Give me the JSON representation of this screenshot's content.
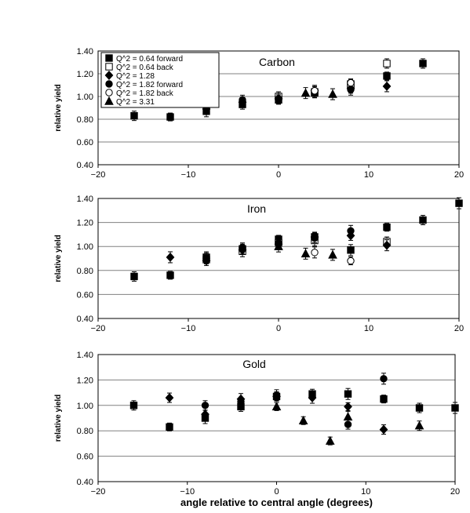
{
  "chart_data": [
    {
      "type": "scatter",
      "title": "Carbon",
      "xlabel": "",
      "ylabel": "relative yield",
      "xlim": [
        -20,
        20
      ],
      "ylim": [
        0.4,
        1.4
      ],
      "x_ticks": [
        "−20",
        "−10",
        "0",
        "10",
        "20"
      ],
      "y_ticks": [
        "0.40",
        "0.60",
        "0.80",
        "1.00",
        "1.20",
        "1.40"
      ],
      "grid": "horizontal",
      "legend": {
        "placement": "top-left",
        "entries": [
          {
            "label": "Q^2 = 0.64 forward",
            "marker": "filled-square"
          },
          {
            "label": "Q^2 = 0.64 back",
            "marker": "open-square"
          },
          {
            "label": "Q^2 = 1.28",
            "marker": "filled-diamond"
          },
          {
            "label": "Q^2 = 1.82 forward",
            "marker": "filled-circle"
          },
          {
            "label": "Q^2 = 1.82 back",
            "marker": "open-circle"
          },
          {
            "label": "Q^2 = 3.31",
            "marker": "filled-triangle"
          }
        ]
      },
      "series": [
        {
          "marker": "filled-square",
          "points": [
            [
              -16,
              0.83
            ],
            [
              -12,
              0.82
            ],
            [
              -8,
              0.87
            ],
            [
              -4,
              0.93
            ],
            [
              0,
              0.97
            ],
            [
              4,
              1.03
            ],
            [
              8,
              1.1
            ],
            [
              12,
              1.18
            ],
            [
              16,
              1.29
            ]
          ]
        },
        {
          "marker": "open-square",
          "points": [
            [
              0,
              1.0
            ],
            [
              4,
              1.04
            ],
            [
              8,
              1.11
            ],
            [
              12,
              1.29
            ]
          ]
        },
        {
          "marker": "filled-diamond",
          "points": [
            [
              -12,
              1.0
            ],
            [
              -8,
              0.89
            ],
            [
              -4,
              0.95
            ],
            [
              0,
              0.98
            ],
            [
              4,
              1.05
            ],
            [
              8,
              1.07
            ],
            [
              12,
              1.09
            ]
          ]
        },
        {
          "marker": "filled-circle",
          "points": [
            [
              -8,
              0.95
            ],
            [
              -4,
              0.97
            ],
            [
              0,
              0.98
            ],
            [
              4,
              1.03
            ],
            [
              8,
              1.06
            ]
          ]
        },
        {
          "marker": "open-circle",
          "points": [
            [
              4,
              1.05
            ],
            [
              8,
              1.12
            ]
          ]
        },
        {
          "marker": "filled-triangle",
          "points": [
            [
              3,
              1.03
            ],
            [
              6,
              1.02
            ]
          ]
        }
      ]
    },
    {
      "type": "scatter",
      "title": "Iron",
      "xlabel": "",
      "ylabel": "relative yield",
      "xlim": [
        -20,
        20
      ],
      "ylim": [
        0.4,
        1.4
      ],
      "x_ticks": [
        "−20",
        "−10",
        "0",
        "10",
        "20"
      ],
      "y_ticks": [
        "0.40",
        "0.60",
        "0.80",
        "1.00",
        "1.20",
        "1.40"
      ],
      "grid": "horizontal",
      "series": [
        {
          "marker": "filled-square",
          "points": [
            [
              -16,
              0.75
            ],
            [
              -12,
              0.76
            ],
            [
              -8,
              0.91
            ],
            [
              -4,
              0.98
            ],
            [
              0,
              1.06
            ],
            [
              4,
              1.08
            ],
            [
              8,
              0.97
            ],
            [
              12,
              1.16
            ],
            [
              16,
              1.22
            ],
            [
              20,
              1.36
            ]
          ]
        },
        {
          "marker": "open-square",
          "points": [
            [
              -8,
              0.89
            ],
            [
              -4,
              0.96
            ],
            [
              0,
              1.03
            ],
            [
              4,
              1.05
            ],
            [
              12,
              1.04
            ]
          ]
        },
        {
          "marker": "filled-diamond",
          "points": [
            [
              -12,
              0.91
            ],
            [
              -8,
              0.88
            ],
            [
              -4,
              0.97
            ],
            [
              0,
              1.02
            ],
            [
              4,
              1.08
            ],
            [
              8,
              1.09
            ],
            [
              12,
              1.01
            ]
          ]
        },
        {
          "marker": "filled-circle",
          "points": [
            [
              -8,
              0.9
            ],
            [
              -4,
              0.99
            ],
            [
              0,
              1.03
            ],
            [
              4,
              1.07
            ],
            [
              8,
              1.13
            ]
          ]
        },
        {
          "marker": "open-circle",
          "points": [
            [
              4,
              0.95
            ],
            [
              8,
              0.88
            ]
          ]
        },
        {
          "marker": "filled-triangle",
          "points": [
            [
              0,
              1.0
            ],
            [
              3,
              0.94
            ],
            [
              6,
              0.93
            ]
          ]
        }
      ]
    },
    {
      "type": "scatter",
      "title": "Gold",
      "xlabel": "angle relative to central angle (degrees)",
      "ylabel": "relative yield",
      "xlim": [
        -20,
        20
      ],
      "ylim": [
        0.4,
        1.4
      ],
      "x_ticks": [
        "−20",
        "−10",
        "0",
        "10",
        "20"
      ],
      "y_ticks": [
        "0.40",
        "0.60",
        "0.80",
        "1.00",
        "1.20",
        "1.40"
      ],
      "grid": "horizontal",
      "series": [
        {
          "marker": "filled-square",
          "points": [
            [
              -16,
              1.0
            ],
            [
              -12,
              0.83
            ],
            [
              -8,
              0.9
            ],
            [
              -4,
              0.99
            ],
            [
              0,
              1.07
            ],
            [
              4,
              1.09
            ],
            [
              8,
              1.09
            ],
            [
              12,
              1.05
            ],
            [
              16,
              0.98
            ],
            [
              20,
              0.98
            ]
          ]
        },
        {
          "marker": "filled-diamond",
          "points": [
            [
              -12,
              1.06
            ],
            [
              -8,
              0.93
            ],
            [
              -4,
              1.05
            ],
            [
              0,
              1.07
            ],
            [
              4,
              1.06
            ],
            [
              8,
              0.99
            ],
            [
              12,
              0.81
            ]
          ]
        },
        {
          "marker": "filled-circle",
          "points": [
            [
              -8,
              1.0
            ],
            [
              -4,
              1.03
            ],
            [
              0,
              1.08
            ],
            [
              8,
              0.85
            ],
            [
              12,
              1.21
            ]
          ]
        },
        {
          "marker": "filled-triangle",
          "points": [
            [
              0,
              0.99
            ],
            [
              3,
              0.88
            ],
            [
              6,
              0.72
            ],
            [
              8,
              0.91
            ],
            [
              16,
              0.84
            ]
          ]
        }
      ]
    }
  ]
}
